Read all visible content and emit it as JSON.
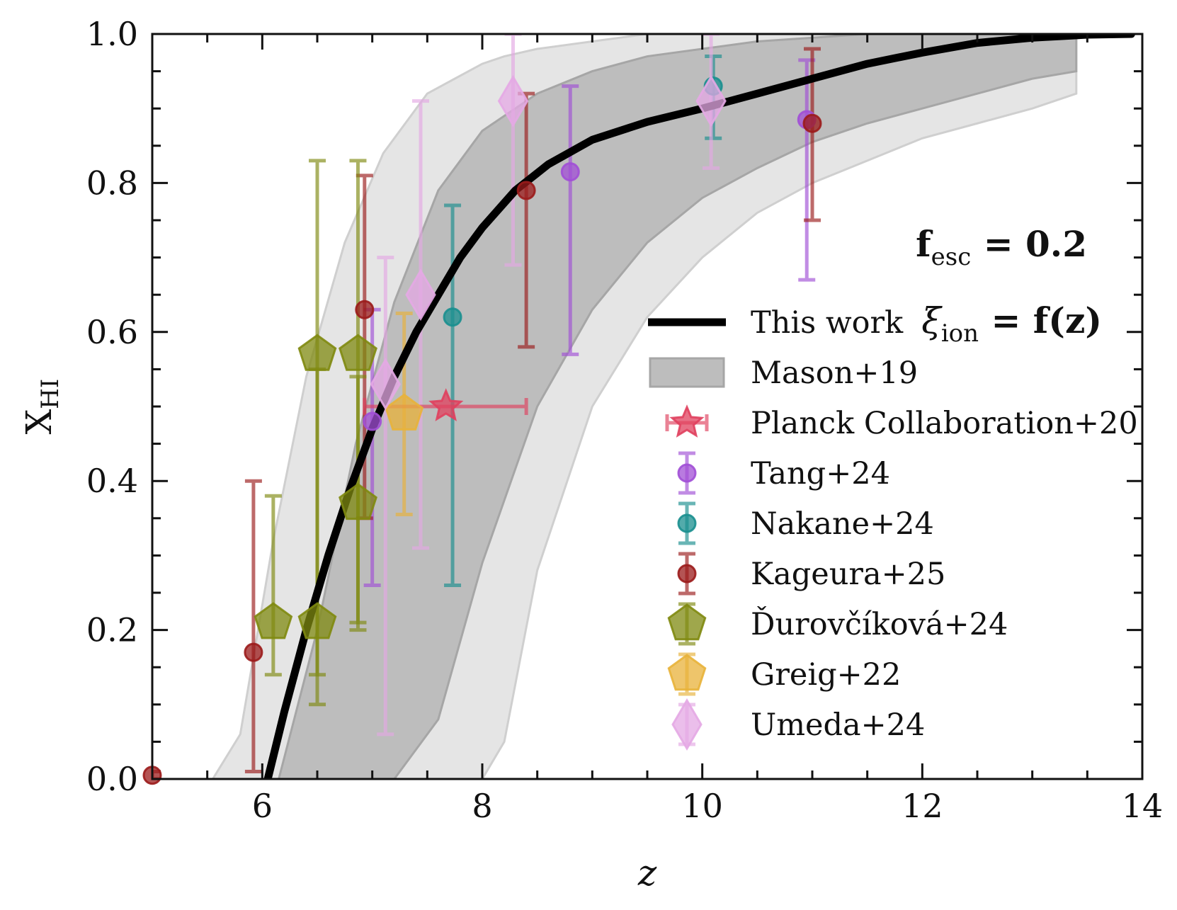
{
  "chart_data": {
    "type": "scatter",
    "xlabel": "z",
    "ylabel": {
      "main": "X",
      "sub": "HI"
    },
    "xlim": [
      5,
      14
    ],
    "ylim": [
      0,
      1.0
    ],
    "x_ticks": [
      "6",
      "8",
      "10",
      "12",
      "14"
    ],
    "x_tick_values": [
      6,
      8,
      10,
      12,
      14
    ],
    "y_ticks": [
      "0.0",
      "0.2",
      "0.4",
      "0.6",
      "0.8",
      "1.0"
    ],
    "y_tick_values": [
      0,
      0.2,
      0.4,
      0.6,
      0.8,
      1.0
    ],
    "annotations": {
      "fesc": {
        "base": "f",
        "sub": "esc",
        "rest": " = 0.2"
      },
      "xi": {
        "base": "ξ",
        "sub": "ion",
        "rest": " = f(z)"
      }
    },
    "legend": {
      "position": "lower-right",
      "entries": [
        "This work",
        "Mason+19",
        "Planck Collaboration+20",
        "Tang+24",
        "Nakane+24",
        "Kageura+25",
        "Ďurovčíková+24",
        "Greig+22",
        "Umeda+24"
      ]
    },
    "colors": {
      "this_work": "#000000",
      "band_outer": "#e5e5e5",
      "band_inner": "#bdbdbd",
      "planck": "#e0405e",
      "tang": "#a14fd6",
      "nakane": "#1a8f8f",
      "kageura": "#9b1b1b",
      "durovcikova": "#7f8a10",
      "greig": "#e8b23a",
      "umeda": "#e4a8e4"
    },
    "this_work_curve": {
      "x": [
        6.05,
        6.2,
        6.4,
        6.6,
        6.8,
        7.0,
        7.2,
        7.4,
        7.6,
        7.8,
        8.0,
        8.3,
        8.6,
        9.0,
        9.5,
        10.0,
        10.5,
        11.0,
        11.5,
        12.0,
        12.5,
        13.0,
        13.5,
        13.9
      ],
      "y": [
        0.0,
        0.09,
        0.2,
        0.3,
        0.39,
        0.47,
        0.54,
        0.6,
        0.65,
        0.7,
        0.74,
        0.79,
        0.825,
        0.858,
        0.882,
        0.9,
        0.92,
        0.94,
        0.96,
        0.975,
        0.988,
        0.995,
        0.999,
        1.0
      ]
    },
    "mason19": {
      "inner": {
        "x": [
          6.15,
          6.5,
          6.85,
          7.2,
          7.6,
          8.0,
          8.5,
          9.0,
          9.5,
          10.0,
          10.5,
          11.0,
          11.5,
          12.0,
          12.5,
          13.0,
          13.4
        ],
        "lower": [
          0.0,
          0.0,
          0.0,
          0.0,
          0.08,
          0.29,
          0.5,
          0.63,
          0.72,
          0.78,
          0.82,
          0.855,
          0.88,
          0.9,
          0.92,
          0.94,
          0.95
        ],
        "upper": [
          0.0,
          0.2,
          0.45,
          0.64,
          0.79,
          0.87,
          0.92,
          0.95,
          0.97,
          0.98,
          0.99,
          0.995,
          1.0,
          1.0,
          1.0,
          1.0,
          1.0
        ]
      },
      "outer": {
        "x": [
          5.55,
          5.8,
          6.1,
          6.4,
          6.75,
          7.1,
          7.5,
          8.0,
          8.2,
          8.5,
          9.0,
          9.5,
          10.0,
          10.5,
          11.0,
          11.5,
          12.0,
          12.5,
          13.0,
          13.4
        ],
        "lower": [
          0.0,
          0.0,
          0.0,
          0.0,
          0.0,
          0.0,
          0.0,
          0.0,
          0.05,
          0.28,
          0.5,
          0.62,
          0.7,
          0.76,
          0.8,
          0.83,
          0.86,
          0.88,
          0.9,
          0.92
        ],
        "upper": [
          0.0,
          0.06,
          0.32,
          0.54,
          0.72,
          0.84,
          0.92,
          0.96,
          0.97,
          0.98,
          0.99,
          1.0,
          1.0,
          1.0,
          1.0,
          1.0,
          1.0,
          1.0,
          1.0,
          1.0
        ]
      }
    },
    "series": [
      {
        "name": "Tang+24",
        "marker": "circle",
        "color": "#a14fd6",
        "points": [
          {
            "x": 7.0,
            "y": 0.48,
            "ylo": 0.26,
            "yhi": 0.63
          },
          {
            "x": 8.8,
            "y": 0.815,
            "ylo": 0.57,
            "yhi": 0.93
          },
          {
            "x": 10.95,
            "y": 0.885,
            "ylo": 0.67,
            "yhi": 0.965
          }
        ]
      },
      {
        "name": "Nakane+24",
        "marker": "circle",
        "color": "#1a8f8f",
        "points": [
          {
            "x": 7.73,
            "y": 0.62,
            "ylo": 0.26,
            "yhi": 0.77
          },
          {
            "x": 10.1,
            "y": 0.93,
            "ylo": 0.86,
            "yhi": 0.97
          }
        ]
      },
      {
        "name": "Kageura+25",
        "marker": "circle",
        "color": "#9b1b1b",
        "points": [
          {
            "x": 5.0,
            "y": 0.005,
            "ylo": 0.0,
            "yhi": 0.01
          },
          {
            "x": 5.92,
            "y": 0.17,
            "ylo": 0.01,
            "yhi": 0.4
          },
          {
            "x": 6.93,
            "y": 0.63,
            "ylo": 0.35,
            "yhi": 0.81
          },
          {
            "x": 8.4,
            "y": 0.79,
            "ylo": 0.58,
            "yhi": 0.92
          },
          {
            "x": 11.0,
            "y": 0.88,
            "ylo": 0.75,
            "yhi": 0.98
          }
        ]
      },
      {
        "name": "Ďurovčíková+24",
        "marker": "pentagon",
        "color": "#7f8a10",
        "points": [
          {
            "x": 6.1,
            "y": 0.21,
            "ylo": 0.14,
            "yhi": 0.38
          },
          {
            "x": 6.5,
            "y": 0.21,
            "ylo": 0.1,
            "yhi": 0.55
          },
          {
            "x": 6.5,
            "y": 0.57,
            "ylo": 0.14,
            "yhi": 0.83
          },
          {
            "x": 6.87,
            "y": 0.57,
            "ylo": 0.21,
            "yhi": 0.83
          },
          {
            "x": 6.87,
            "y": 0.37,
            "ylo": 0.2,
            "yhi": 0.54
          }
        ]
      },
      {
        "name": "Greig+22",
        "marker": "pentagon",
        "color": "#e8b23a",
        "points": [
          {
            "x": 7.29,
            "y": 0.49,
            "ylo": 0.355,
            "yhi": 0.625
          }
        ]
      },
      {
        "name": "Umeda+24",
        "marker": "diamond",
        "color": "#e4a8e4",
        "points": [
          {
            "x": 7.12,
            "y": 0.53,
            "ylo": 0.06,
            "yhi": 0.7
          },
          {
            "x": 7.44,
            "y": 0.65,
            "ylo": 0.31,
            "yhi": 0.91
          },
          {
            "x": 8.28,
            "y": 0.91,
            "ylo": 0.69,
            "yhi": 1.0
          },
          {
            "x": 10.08,
            "y": 0.91,
            "ylo": 0.82,
            "yhi": 1.0
          }
        ]
      },
      {
        "name": "Planck Collaboration+20",
        "marker": "star",
        "color": "#e0405e",
        "points": [
          {
            "x": 7.67,
            "y": 0.5,
            "xlo": 6.93,
            "xhi": 8.4
          }
        ]
      }
    ]
  }
}
